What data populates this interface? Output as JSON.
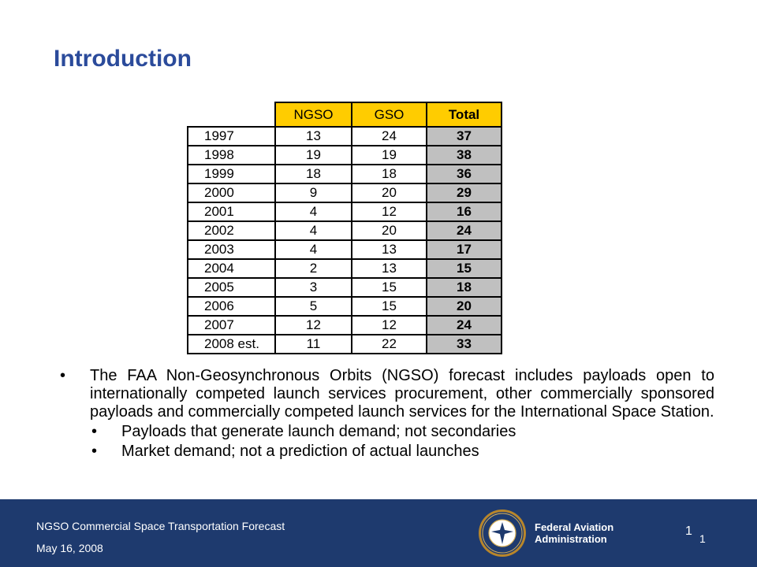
{
  "slide": {
    "title": "Introduction"
  },
  "table": {
    "headers": [
      "NGSO",
      "GSO",
      "Total"
    ],
    "rows": [
      {
        "year": "1997",
        "ngso": "13",
        "gso": "24",
        "total": "37"
      },
      {
        "year": "1998",
        "ngso": "19",
        "gso": "19",
        "total": "38"
      },
      {
        "year": "1999",
        "ngso": "18",
        "gso": "18",
        "total": "36"
      },
      {
        "year": "2000",
        "ngso": "9",
        "gso": "20",
        "total": "29"
      },
      {
        "year": "2001",
        "ngso": "4",
        "gso": "12",
        "total": "16"
      },
      {
        "year": "2002",
        "ngso": "4",
        "gso": "20",
        "total": "24"
      },
      {
        "year": "2003",
        "ngso": "4",
        "gso": "13",
        "total": "17"
      },
      {
        "year": "2004",
        "ngso": "2",
        "gso": "13",
        "total": "15"
      },
      {
        "year": "2005",
        "ngso": "3",
        "gso": "15",
        "total": "18"
      },
      {
        "year": "2006",
        "ngso": "5",
        "gso": "15",
        "total": "20"
      },
      {
        "year": "2007",
        "ngso": "12",
        "gso": "12",
        "total": "24"
      },
      {
        "year": "2008 est.",
        "ngso": "11",
        "gso": "22",
        "total": "33"
      }
    ],
    "colors": {
      "header_bg": "#ffcc00",
      "total_bg": "#c0c0c0"
    }
  },
  "body": {
    "bullet_main": "The FAA Non-Geosynchronous Orbits (NGSO) forecast includes payloads open to internationally competed launch services procurement, other commercially sponsored payloads and commercially competed launch services for the International Space Station.",
    "sub_bullets": [
      "Payloads that generate launch demand; not secondaries",
      "Market demand; not a prediction of actual launches"
    ],
    "bullet_glyph": "•"
  },
  "footer": {
    "title": "NGSO Commercial Space Transportation Forecast",
    "date": "May 16, 2008",
    "agency_line1": "Federal Aviation",
    "agency_line2": "Administration",
    "page_a": "1",
    "page_b": "1",
    "bg_color": "#1e3a6e",
    "seal_icon": "faa-seal-icon"
  }
}
